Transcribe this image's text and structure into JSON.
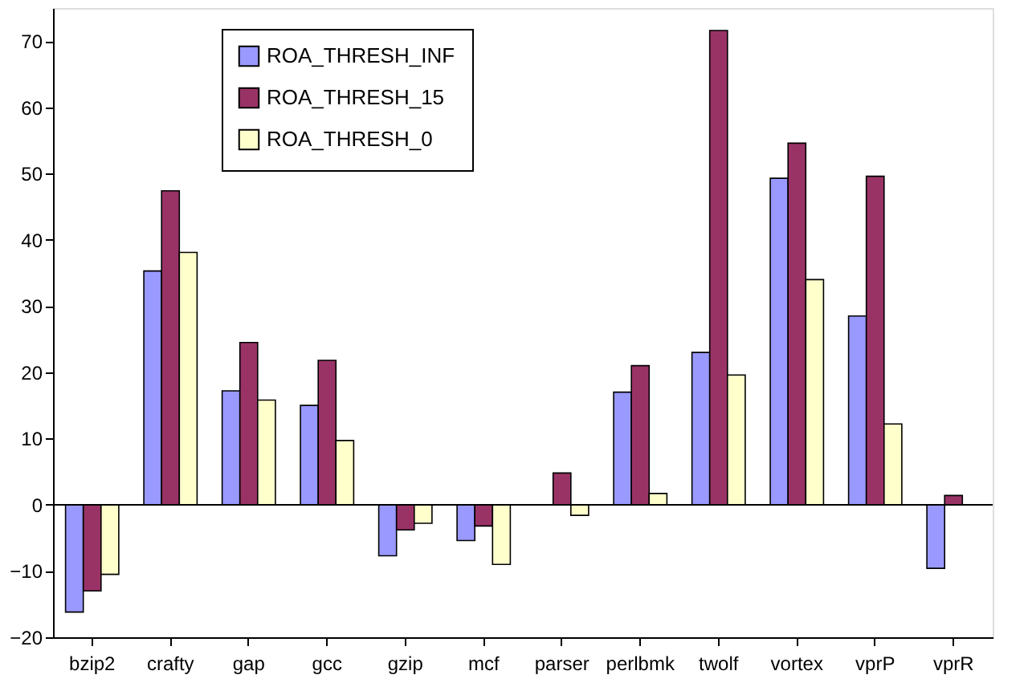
{
  "chart_data": {
    "type": "bar",
    "categories": [
      "bzip2",
      "crafty",
      "gap",
      "gcc",
      "gzip",
      "mcf",
      "parser",
      "perlbmk",
      "twolf",
      "vortex",
      "vprP",
      "vprR"
    ],
    "series": [
      {
        "name": "ROA_THRESH_INF",
        "color": "#9999ff",
        "values": [
          -16.2,
          35.3,
          17.2,
          15.0,
          -7.7,
          -5.4,
          null,
          17.0,
          23.0,
          49.3,
          28.5,
          -9.6
        ]
      },
      {
        "name": "ROA_THRESH_15",
        "color": "#993366",
        "values": [
          -13.0,
          47.4,
          24.5,
          21.8,
          -3.8,
          -3.2,
          4.8,
          21.0,
          71.6,
          54.6,
          49.6,
          1.4
        ]
      },
      {
        "name": "ROA_THRESH_0",
        "color": "#ffffcc",
        "values": [
          -10.5,
          38.1,
          15.8,
          9.7,
          -2.8,
          -9.0,
          -1.6,
          1.7,
          19.6,
          34.0,
          12.2,
          null
        ]
      }
    ],
    "ylim": [
      -20,
      75
    ],
    "yticks": [
      -20,
      -10,
      0,
      10,
      20,
      30,
      40,
      50,
      60,
      70
    ],
    "legend": "top"
  }
}
